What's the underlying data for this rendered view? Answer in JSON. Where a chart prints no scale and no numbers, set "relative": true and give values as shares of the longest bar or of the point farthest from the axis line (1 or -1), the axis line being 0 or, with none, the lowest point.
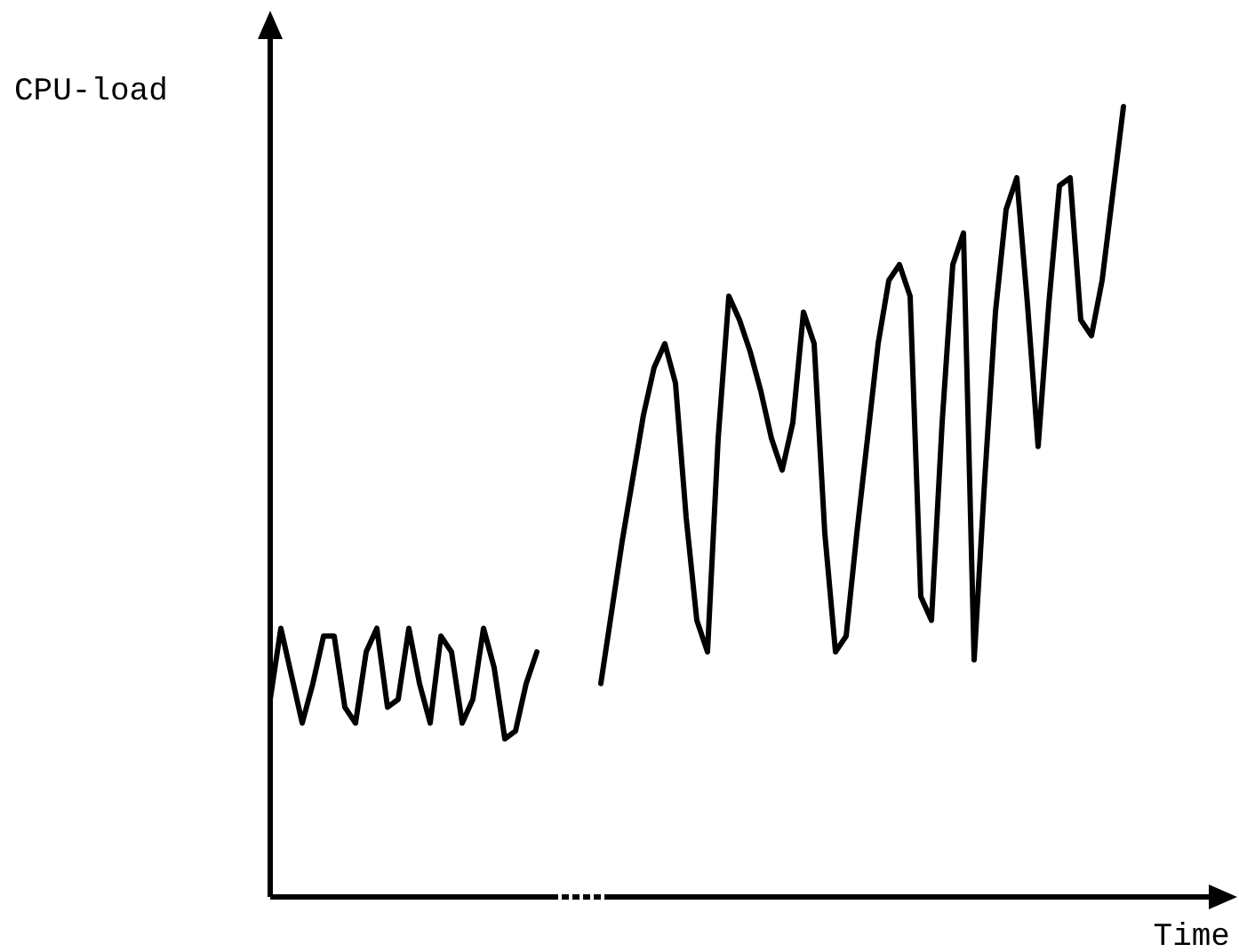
{
  "chart_data": {
    "type": "line",
    "xlabel": "Time",
    "ylabel": "CPU-load",
    "relative": true,
    "marker": "none",
    "categories": [
      null,
      null,
      null,
      null,
      null,
      null,
      null,
      null,
      null,
      null,
      null,
      null,
      null,
      null,
      null,
      null,
      null,
      null,
      null,
      null,
      null,
      null,
      null,
      null,
      null,
      null,
      null,
      null,
      null,
      null,
      null,
      null,
      null,
      null,
      null,
      null,
      null,
      null,
      null,
      null,
      null,
      null,
      null,
      null,
      null,
      null,
      null,
      null,
      null,
      null,
      null,
      null,
      null,
      null,
      null,
      null,
      null,
      null,
      null,
      null,
      null,
      null,
      null,
      null,
      null,
      null,
      null,
      null,
      null,
      null,
      null,
      null,
      null,
      null,
      null,
      null,
      null,
      null,
      null,
      null,
      null
    ],
    "series": [
      {
        "color": "#000000",
        "values": [
          0.25,
          0.34,
          0.28,
          0.22,
          0.27,
          0.33,
          0.33,
          0.24,
          0.22,
          0.31,
          0.34,
          0.24,
          0.25,
          0.34,
          0.27,
          0.22,
          0.33,
          0.31,
          0.22,
          0.25,
          0.34,
          0.29,
          0.2,
          0.21,
          0.27,
          0.31,
          null,
          null,
          null,
          null,
          null,
          null,
          null,
          null,
          null,
          null,
          null,
          null,
          null,
          null,
          null,
          null,
          null,
          null,
          null,
          null,
          null,
          null,
          null,
          null,
          null,
          null,
          null,
          null,
          null,
          null,
          null,
          null,
          null,
          null,
          null,
          null,
          null,
          null,
          null,
          null,
          null,
          null,
          null,
          null,
          null,
          null,
          null,
          null,
          null,
          null,
          null,
          null,
          null,
          null,
          null
        ]
      },
      {
        "color": "#000000",
        "values": [
          null,
          null,
          null,
          null,
          null,
          null,
          null,
          null,
          null,
          null,
          null,
          null,
          null,
          null,
          null,
          null,
          null,
          null,
          null,
          null,
          null,
          null,
          null,
          null,
          null,
          null,
          null,
          null,
          null,
          null,
          null,
          0.27,
          0.36,
          0.45,
          0.53,
          0.61,
          0.67,
          0.7,
          0.65,
          0.48,
          0.35,
          0.31,
          0.58,
          0.76,
          0.73,
          0.69,
          0.64,
          0.58,
          0.54,
          0.6,
          0.74,
          0.7,
          0.46,
          0.31,
          0.33,
          0.46,
          0.58,
          0.7,
          0.78,
          0.8,
          0.76,
          0.38,
          0.35,
          0.6,
          0.8,
          0.84,
          0.3,
          0.53,
          0.74,
          0.87,
          0.91,
          0.75,
          0.57,
          0.75,
          0.9,
          0.91,
          0.73,
          0.71,
          0.78,
          0.89,
          1.0
        ]
      }
    ]
  }
}
